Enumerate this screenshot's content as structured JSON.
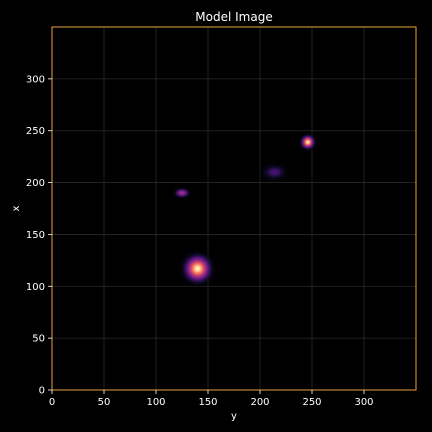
{
  "chart_data": {
    "type": "heatmap",
    "title": "Model Image",
    "xlabel": "y",
    "ylabel": "x",
    "xlim": [
      0,
      350
    ],
    "ylim": [
      0,
      350
    ],
    "xticks": [
      0,
      50,
      100,
      150,
      200,
      250,
      300
    ],
    "yticks": [
      0,
      50,
      100,
      150,
      200,
      250,
      300
    ],
    "grid": true,
    "colormap": "magma",
    "sources": [
      {
        "y": 140,
        "x": 117,
        "sigma_y": 7,
        "sigma_x": 7,
        "peak": 1.0
      },
      {
        "y": 125,
        "x": 190,
        "sigma_y": 4,
        "sigma_x": 2.5,
        "peak": 0.55
      },
      {
        "y": 214,
        "x": 210,
        "sigma_y": 7,
        "sigma_x": 4.5,
        "peak": 0.28
      },
      {
        "y": 246,
        "x": 239,
        "sigma_y": 3.5,
        "sigma_x": 3.5,
        "peak": 1.0
      }
    ],
    "colors": {
      "background": "#000000",
      "frame": "#e8a23a",
      "grid": "#2a2a2a",
      "text": "#ffffff"
    }
  }
}
